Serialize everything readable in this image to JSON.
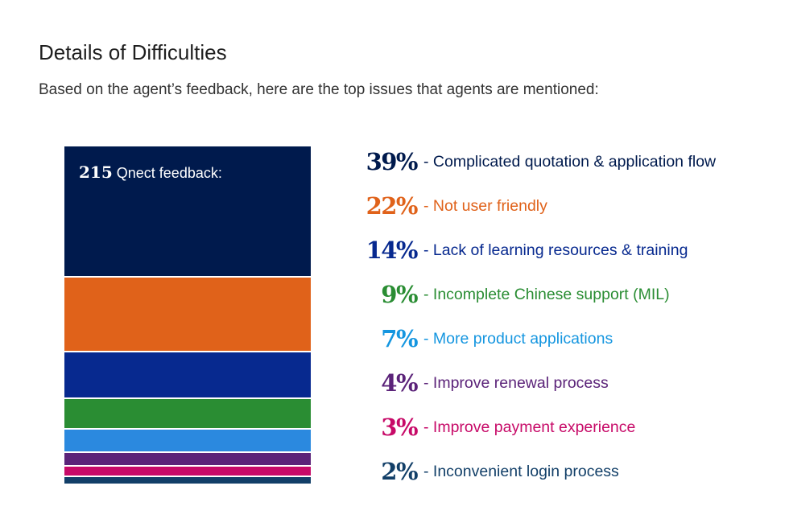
{
  "header": {
    "title": "Details of Difficulties",
    "subtitle": "Based on the agent’s feedback, here are the top issues that agents are mentioned:"
  },
  "stack_label": {
    "count": "215",
    "text": "Qnect feedback:"
  },
  "chart_data": {
    "type": "bar",
    "stacked": true,
    "orientation": "vertical",
    "total": 215,
    "categories": [
      "Complicated quotation & application flow",
      "Not user friendly",
      "Lack of learning resources & training",
      "Incomplete Chinese support (MIL)",
      "More product applications",
      "Improve renewal process",
      "Improve payment experience",
      "Inconvenient login process"
    ],
    "values": [
      39,
      22,
      14,
      9,
      7,
      4,
      3,
      2
    ],
    "labels": [
      "39%",
      "22%",
      "14%",
      "9%",
      "7%",
      "4%",
      "3%",
      "2%"
    ],
    "descriptions": [
      "- Complicated quotation & application flow",
      "- Not user friendly",
      "- Lack of learning resources & training",
      "- Incomplete Chinese support (MIL)",
      "- More product applications",
      "- Improve renewal process",
      "- Improve payment experience",
      "- Inconvenient login process"
    ],
    "colors": [
      "#001a4d",
      "#e0621a",
      "#07298f",
      "#2a8d33",
      "#2b89df",
      "#5b2379",
      "#c70a68",
      "#123f68"
    ],
    "legend_colors": [
      "#001a4d",
      "#e0621a",
      "#07298f",
      "#2a8d33",
      "#1596e0",
      "#5b2379",
      "#c70a68",
      "#123f68"
    ],
    "legend_position": "right"
  }
}
